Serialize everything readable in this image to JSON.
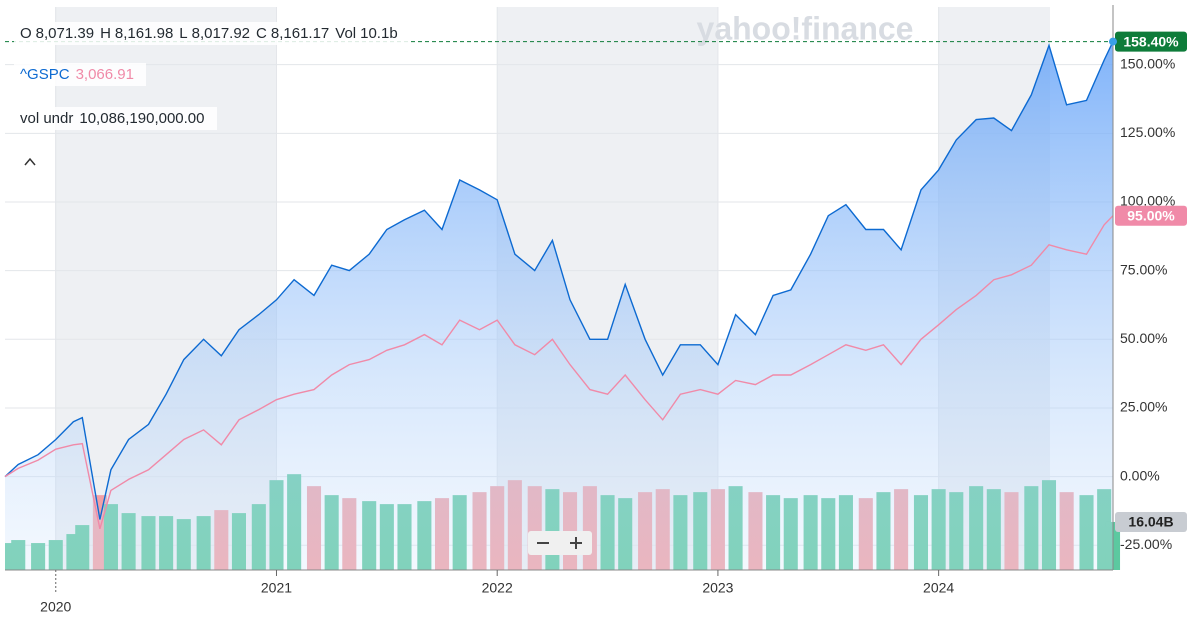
{
  "chart_data": {
    "type": "line",
    "header": [
      {
        "key": "O",
        "value": "8,071.39"
      },
      {
        "key": "H",
        "value": "8,161.98"
      },
      {
        "key": "L",
        "value": "8,017.92"
      },
      {
        "key": "C",
        "value": "8,161.17"
      },
      {
        "key": "Vol",
        "value": "10.1b"
      }
    ],
    "compare_symbol": "^GSPC",
    "compare_price": "3,066.91",
    "volume_label": "vol undr",
    "volume_value": "10,086,190,000.00",
    "watermark": "yahoo!finance",
    "x": [
      2019.77,
      2019.83,
      2019.92,
      2020.0,
      2020.08,
      2020.12,
      2020.2,
      2020.25,
      2020.33,
      2020.42,
      2020.5,
      2020.58,
      2020.67,
      2020.75,
      2020.83,
      2020.92,
      2021.0,
      2021.08,
      2021.17,
      2021.25,
      2021.33,
      2021.42,
      2021.5,
      2021.58,
      2021.67,
      2021.75,
      2021.83,
      2021.92,
      2022.0,
      2022.08,
      2022.17,
      2022.25,
      2022.33,
      2022.42,
      2022.5,
      2022.58,
      2022.67,
      2022.75,
      2022.83,
      2022.92,
      2023.0,
      2023.08,
      2023.17,
      2023.25,
      2023.33,
      2023.42,
      2023.5,
      2023.58,
      2023.67,
      2023.75,
      2023.83,
      2023.92,
      2024.0,
      2024.08,
      2024.17,
      2024.25,
      2024.33,
      2024.42,
      2024.5,
      2024.58,
      2024.67,
      2024.75,
      2024.79
    ],
    "series": [
      {
        "color": "#0d6ad1",
        "fill": true,
        "values": [
          0,
          4.4,
          8,
          13.5,
          20,
          21.5,
          -15.6,
          2.5,
          13.5,
          19,
          30,
          42.6,
          50,
          44,
          53.5,
          59,
          64.4,
          71.7,
          66,
          77,
          75,
          81,
          90,
          93.5,
          97,
          90,
          108,
          104.4,
          100.8,
          81,
          75,
          86,
          64.4,
          50,
          50,
          70,
          50,
          37,
          48,
          48,
          40.8,
          59,
          51.7,
          66,
          68,
          81,
          95,
          99,
          90,
          90,
          82.6,
          104.4,
          111.7,
          122.6,
          130,
          130.6,
          126,
          139,
          157,
          135.4,
          137,
          151.7,
          158.4
        ],
        "last": {
          "value": 158.4,
          "label": "158.40%"
        },
        "last_color": "#0e7c3a"
      },
      {
        "color": "#f08aa8",
        "fill": false,
        "values": [
          0,
          3,
          6,
          10,
          11.6,
          12,
          -19,
          -5,
          -1,
          2.5,
          8,
          13.5,
          17,
          11.6,
          20.7,
          24.4,
          28,
          30,
          31.7,
          37,
          40.8,
          42.6,
          46,
          48,
          51.7,
          48,
          57,
          53.5,
          57,
          48,
          44.4,
          50,
          40.8,
          31.7,
          30,
          37,
          28,
          20.7,
          30,
          31.7,
          30,
          35,
          33.5,
          37,
          37,
          40.8,
          44.4,
          48,
          46,
          48,
          40.8,
          50,
          55.3,
          60.8,
          66,
          71.7,
          73.5,
          77,
          84.4,
          82.6,
          81,
          91.7,
          95
        ],
        "last": {
          "value": 95,
          "label": "95.00%"
        },
        "last_color": "#f08aa8"
      }
    ],
    "volume": {
      "axis": "y2",
      "up_color": "#5cc9a0",
      "down_color": "#f2a0a6",
      "values": [
        9,
        10,
        9,
        10,
        12,
        15,
        25,
        22,
        19,
        18,
        18,
        17,
        18,
        20,
        19,
        22,
        30,
        32,
        28,
        25,
        24,
        23,
        22,
        22,
        23,
        24,
        25,
        26,
        28,
        30,
        28,
        27,
        26,
        28,
        25,
        24,
        26,
        27,
        25,
        26,
        27,
        28,
        26,
        25,
        24,
        25,
        24,
        25,
        24,
        26,
        27,
        25,
        27,
        26,
        28,
        27,
        26,
        28,
        30,
        26,
        25,
        27,
        16.04
      ],
      "last": {
        "value": 16.04,
        "label": "16.04B"
      }
    },
    "xlim": [
      2019.77,
      2024.79
    ],
    "xticks": [
      2020,
      2021,
      2022,
      2023,
      2024
    ],
    "ylim": [
      -34,
      171
    ],
    "yticks": [
      {
        "value": -25,
        "label": "-25.00%"
      },
      {
        "value": 0,
        "label": "0.00%"
      },
      {
        "value": 25,
        "label": "25.00%"
      },
      {
        "value": 50,
        "label": "50.00%"
      },
      {
        "value": 75,
        "label": "75.00%"
      },
      {
        "value": 100,
        "label": "100.00%"
      },
      {
        "value": 125,
        "label": "125.00%"
      },
      {
        "value": 150,
        "label": "150.00%"
      }
    ],
    "y2lim": [
      0,
      188
    ],
    "grid": true
  }
}
